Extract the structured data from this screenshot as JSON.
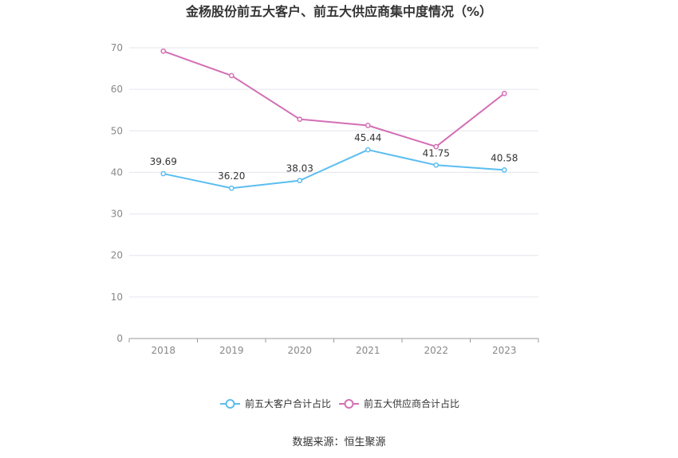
{
  "chart_data": {
    "type": "line",
    "title": "金杨股份前五大客户、前五大供应商集中度情况（%）",
    "categories": [
      "2018",
      "2019",
      "2020",
      "2021",
      "2022",
      "2023"
    ],
    "ylim": [
      0,
      70
    ],
    "yticks": [
      0,
      10,
      20,
      30,
      40,
      50,
      60,
      70
    ],
    "grid": true,
    "legend_position": "bottom",
    "series": [
      {
        "name": "前五大客户合计占比",
        "color": "#5bbdf0",
        "values": [
          39.69,
          36.2,
          38.03,
          45.44,
          41.75,
          40.58
        ],
        "labels": [
          "39.69",
          "36.20",
          "38.03",
          "45.44",
          "41.75",
          "40.58"
        ],
        "show_labels": true
      },
      {
        "name": "前五大供应商合计占比",
        "color": "#d36fb4",
        "values": [
          69.2,
          63.3,
          52.8,
          51.3,
          46.2,
          59.0
        ],
        "show_labels": false
      }
    ]
  },
  "source": "数据来源：恒生聚源"
}
